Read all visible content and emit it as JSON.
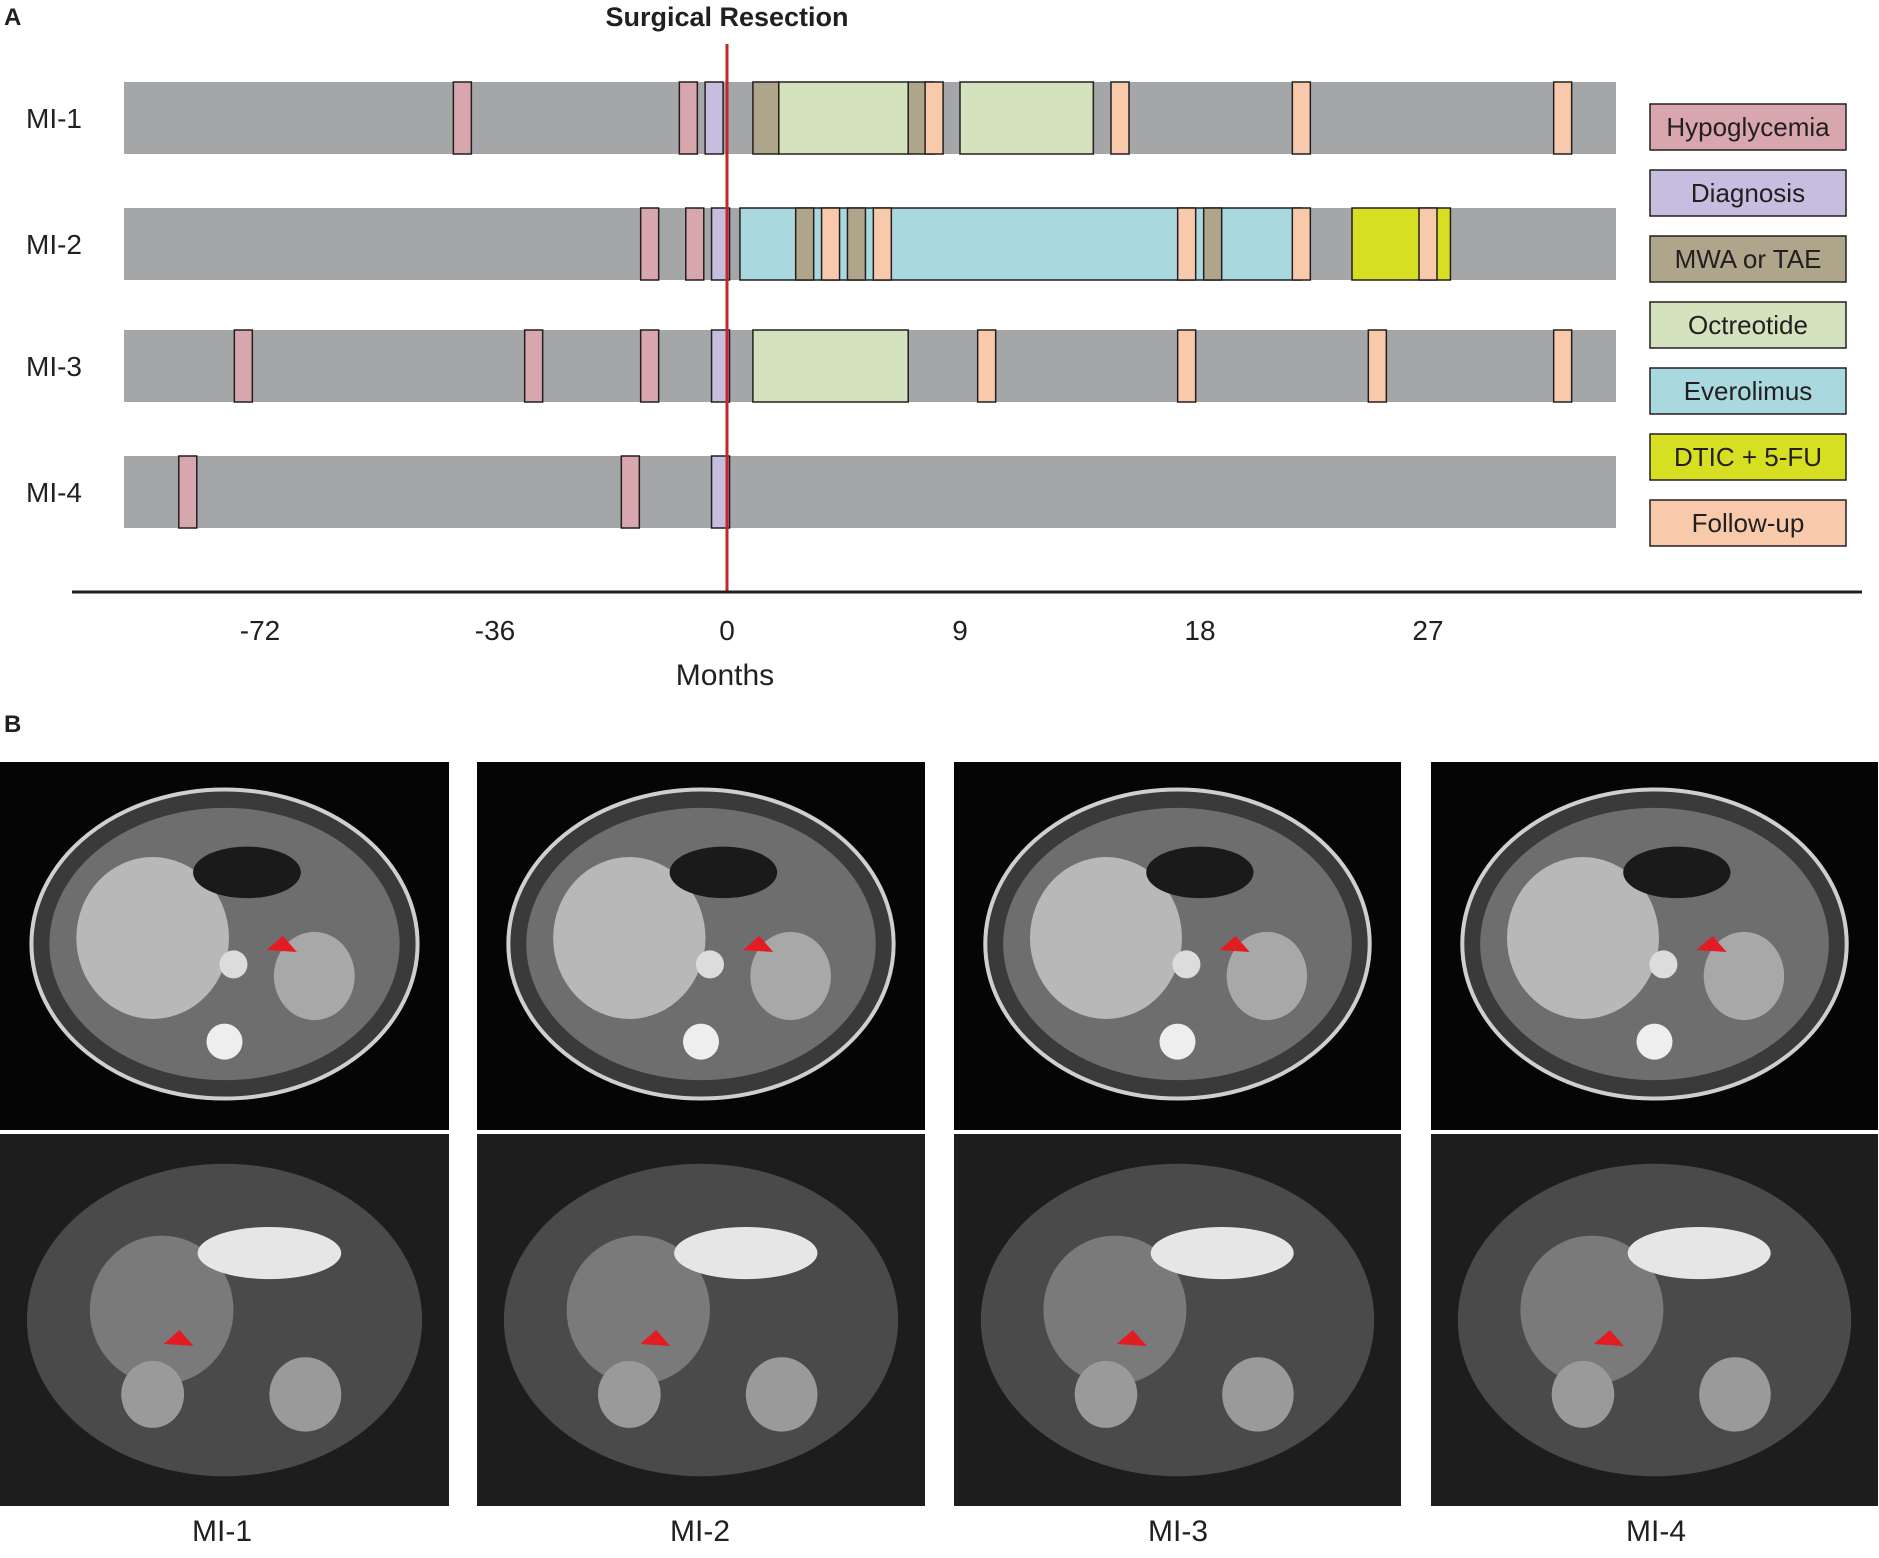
{
  "panels": {
    "a_label": "A",
    "b_label": "B"
  },
  "timeline": {
    "title": "Surgical Resection",
    "x_label": "Months",
    "ticks": [
      "-72",
      "-36",
      "0",
      "9",
      "18",
      "27"
    ],
    "rows": [
      "MI-1",
      "MI-2",
      "MI-3",
      "MI-4"
    ]
  },
  "legend": [
    {
      "label": "Hypoglycemia",
      "color": "#d8a7ad"
    },
    {
      "label": "Diagnosis",
      "color": "#c7bedf"
    },
    {
      "label": "MWA or TAE",
      "color": "#aea58a"
    },
    {
      "label": "Octreotide",
      "color": "#d4e2bd"
    },
    {
      "label": "Everolimus",
      "color": "#a9d8df"
    },
    {
      "label": "DTIC + 5-FU",
      "color": "#d6df22"
    },
    {
      "label": "Follow-up",
      "color": "#f8c9aa"
    }
  ],
  "chart_data": {
    "type": "timeline",
    "title": "Surgical Resection",
    "xlabel": "Months",
    "x_ticks": [
      "-72",
      "-36",
      "0",
      "9",
      "18",
      "27"
    ],
    "note": "axis is non-linear (piecewise) between pre- and post-resection segments",
    "series": [
      {
        "name": "MI-1",
        "events": [
          {
            "type": "Hypoglycemia",
            "month": -41
          },
          {
            "type": "Hypoglycemia",
            "month": -6
          },
          {
            "type": "Diagnosis",
            "month": -2
          },
          {
            "type": "MWA or TAE",
            "start": 1,
            "end": 2
          },
          {
            "type": "Octreotide",
            "start": 2,
            "end": 7
          },
          {
            "type": "MWA or TAE",
            "start": 7,
            "end": 8
          },
          {
            "type": "Follow-up",
            "month": 8
          },
          {
            "type": "Octreotide",
            "start": 9,
            "end": 14
          },
          {
            "type": "Follow-up",
            "month": 15
          },
          {
            "type": "Follow-up",
            "month": 22
          },
          {
            "type": "Follow-up",
            "month": 33
          }
        ]
      },
      {
        "name": "MI-2",
        "events": [
          {
            "type": "Hypoglycemia",
            "month": -12
          },
          {
            "type": "Hypoglycemia",
            "month": -5
          },
          {
            "type": "Diagnosis",
            "month": -1
          },
          {
            "type": "Everolimus",
            "start": 0.5,
            "end": 22
          },
          {
            "type": "MWA or TAE",
            "month": 3
          },
          {
            "type": "Follow-up",
            "month": 4
          },
          {
            "type": "MWA or TAE",
            "month": 5
          },
          {
            "type": "Follow-up",
            "month": 6
          },
          {
            "type": "Follow-up",
            "month": 17.5
          },
          {
            "type": "MWA or TAE",
            "month": 18.5
          },
          {
            "type": "Follow-up",
            "month": 22
          },
          {
            "type": "DTIC + 5-FU",
            "start": 24,
            "end": 28
          },
          {
            "type": "Follow-up",
            "month": 27
          }
        ]
      },
      {
        "name": "MI-3",
        "events": [
          {
            "type": "Hypoglycemia",
            "month": -75
          },
          {
            "type": "Hypoglycemia",
            "month": -30
          },
          {
            "type": "Hypoglycemia",
            "month": -12
          },
          {
            "type": "Diagnosis",
            "month": -1
          },
          {
            "type": "Octreotide",
            "start": 1,
            "end": 7
          },
          {
            "type": "Follow-up",
            "month": 10
          },
          {
            "type": "Follow-up",
            "month": 17.5
          },
          {
            "type": "Follow-up",
            "month": 25
          },
          {
            "type": "Follow-up",
            "month": 33
          }
        ]
      },
      {
        "name": "MI-4",
        "events": [
          {
            "type": "Hypoglycemia",
            "month": -85
          },
          {
            "type": "Hypoglycemia",
            "month": -15
          },
          {
            "type": "Diagnosis",
            "month": -1
          }
        ]
      }
    ]
  },
  "scans": {
    "labels": [
      "MI-1",
      "MI-2",
      "MI-3",
      "MI-4"
    ]
  }
}
